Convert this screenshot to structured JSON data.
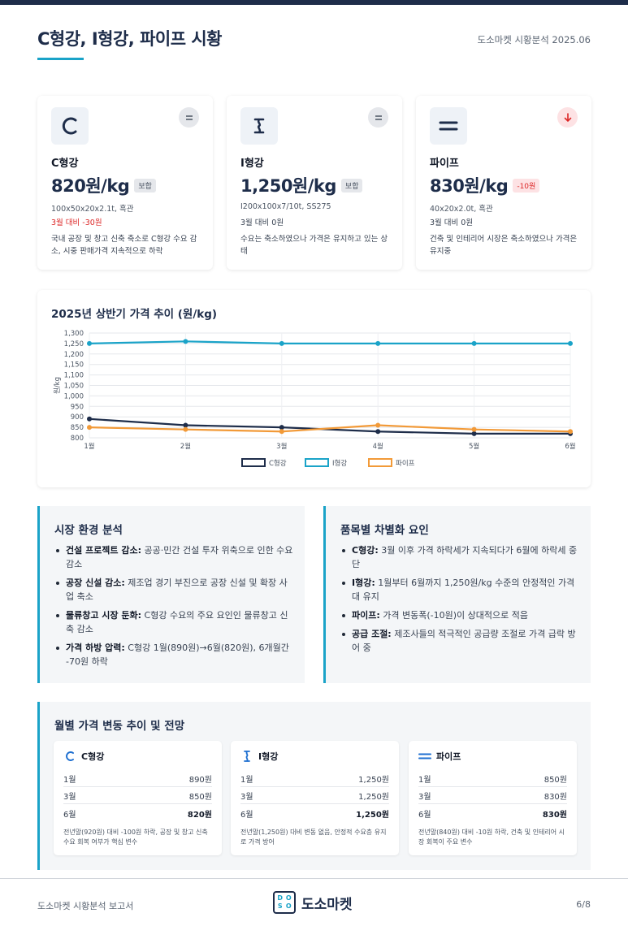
{
  "header": {
    "title": "C형강, I형강, 파이프 시황",
    "meta": "도소마켓 시황분석 2025.06"
  },
  "products": [
    {
      "name": "C형강",
      "price": "820원/kg",
      "badge": "보합",
      "badge_type": "neutral",
      "spec": "100x50x20x2.1t, 흑관",
      "change": "3월 대비 -30원",
      "desc": "국내 공장 및 창고 신축 축소로 C형강 수요 감소, 시중 판매가격 지속적으로 하락",
      "icon": "c-channel-icon",
      "trend_icon": "equal-icon"
    },
    {
      "name": "I형강",
      "price": "1,250원/kg",
      "badge": "보합",
      "badge_type": "neutral",
      "spec": "I200x100x7/10t, SS275",
      "change": "3월 대비 0원",
      "desc": "수요는 축소하였으나 가격은 유지하고 있는 상태",
      "icon": "i-beam-icon",
      "trend_icon": "equal-icon"
    },
    {
      "name": "파이프",
      "price": "830원/kg",
      "badge": "-10원",
      "badge_type": "down",
      "spec": "40x20x2.0t, 흑관",
      "change": "3월 대비 0원",
      "desc": "건축 및 인테리어 시장은 축소하였으나 가격은 유지중",
      "icon": "pipe-icon",
      "trend_icon": "arrow-down-icon"
    }
  ],
  "chart_data": {
    "type": "line",
    "title": "2025년 상반기 가격 추이 (원/kg)",
    "ylabel": "원/kg",
    "categories": [
      "1월",
      "2월",
      "3월",
      "4월",
      "5월",
      "6월"
    ],
    "ylim": [
      800,
      1300
    ],
    "yticks": [
      "800",
      "850",
      "900",
      "950",
      "1,000",
      "1,050",
      "1,100",
      "1,150",
      "1,200",
      "1,250",
      "1,300"
    ],
    "grid": true,
    "legend": "bottom",
    "series": [
      {
        "name": "C형강",
        "color": "#1e2d4a",
        "values": [
          890,
          860,
          850,
          830,
          820,
          820
        ]
      },
      {
        "name": "I형강",
        "color": "#1aa3c8",
        "values": [
          1250,
          1260,
          1250,
          1250,
          1250,
          1250
        ]
      },
      {
        "name": "파이프",
        "color": "#f29a38",
        "values": [
          850,
          840,
          830,
          860,
          840,
          830
        ]
      }
    ]
  },
  "market_analysis": {
    "title": "시장 환경 분석",
    "items": [
      {
        "head": "건설 프로젝트 감소:",
        "text": " 공공·민간 건설 투자 위축으로 인한 수요 감소"
      },
      {
        "head": "공장 신설 감소:",
        "text": " 제조업 경기 부진으로 공장 신설 및 확장 사업 축소"
      },
      {
        "head": "물류창고 시장 둔화:",
        "text": " C형강 수요의 주요 요인인 물류창고 신축 감소"
      },
      {
        "head": "가격 하방 압력:",
        "text": " C형강 1월(890원)→6월(820원), 6개월간 -70원 하락"
      }
    ]
  },
  "differentiation": {
    "title": "품목별 차별화 요인",
    "items": [
      {
        "head": "C형강:",
        "text": " 3월 이후 가격 하락세가 지속되다가 6월에 하락세 중단"
      },
      {
        "head": "I형강:",
        "text": " 1월부터 6월까지 1,250원/kg 수준의 안정적인 가격대 유지"
      },
      {
        "head": "파이프:",
        "text": " 가격 변동폭(-10원)이 상대적으로 적음"
      },
      {
        "head": "공급 조절:",
        "text": " 제조사들의 적극적인 공급량 조절로 가격 급락 방어 중"
      }
    ]
  },
  "monthly": {
    "title": "월별 가격 변동 추이 및 전망",
    "cards": [
      {
        "name": "C형강",
        "rows": [
          {
            "m": "1월",
            "v": "890원"
          },
          {
            "m": "3월",
            "v": "850원"
          },
          {
            "m": "6월",
            "v": "820원"
          }
        ],
        "note": "전년말(920원) 대비 -100원 하락, 공장 및 창고 신축 수요 회복 여부가 핵심 변수",
        "icon": "c-channel-icon"
      },
      {
        "name": "I형강",
        "rows": [
          {
            "m": "1월",
            "v": "1,250원"
          },
          {
            "m": "3월",
            "v": "1,250원"
          },
          {
            "m": "6월",
            "v": "1,250원"
          }
        ],
        "note": "전년말(1,250원) 대비 변동 없음, 안정적 수요층 유지로 가격 방어",
        "icon": "i-beam-icon"
      },
      {
        "name": "파이프",
        "rows": [
          {
            "m": "1월",
            "v": "850원"
          },
          {
            "m": "3월",
            "v": "830원"
          },
          {
            "m": "6월",
            "v": "830원"
          }
        ],
        "note": "전년말(840원) 대비 -10원 하락, 건축 및 인테리어 시장 회복이 주요 변수",
        "icon": "pipe-icon"
      }
    ]
  },
  "footer": {
    "left": "도소마켓 시황분석 보고서",
    "brand": "도소마켓",
    "logo_letters": [
      "D",
      "O",
      "S",
      "O"
    ],
    "page": "6/8"
  },
  "colors": {
    "navy": "#1e2d4a",
    "accent": "#1aa3c8",
    "orange": "#f29a38",
    "red": "#dc2626"
  }
}
